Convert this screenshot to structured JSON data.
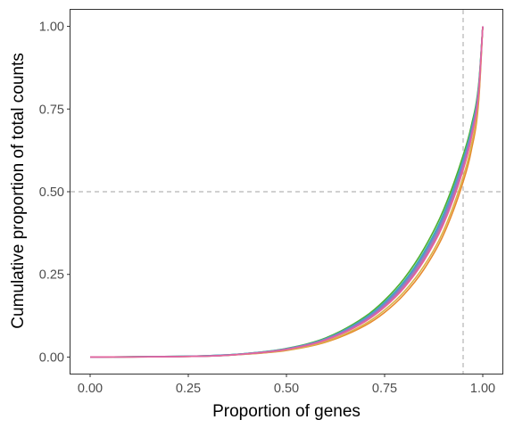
{
  "chart_data": {
    "type": "line",
    "title": "",
    "xlabel": "Proportion of genes",
    "ylabel": "Cumulative proportion of total counts",
    "xlim": [
      -0.05,
      1.05
    ],
    "ylim": [
      -0.05,
      1.05
    ],
    "x_ticks": [
      {
        "value": 0,
        "label": "0.00"
      },
      {
        "value": 0.25,
        "label": "0.25"
      },
      {
        "value": 0.5,
        "label": "0.50"
      },
      {
        "value": 0.75,
        "label": "0.75"
      },
      {
        "value": 1,
        "label": "1.00"
      }
    ],
    "y_ticks": [
      {
        "value": 0,
        "label": "0.00"
      },
      {
        "value": 0.25,
        "label": "0.25"
      },
      {
        "value": 0.5,
        "label": "0.50"
      },
      {
        "value": 0.75,
        "label": "0.75"
      },
      {
        "value": 1,
        "label": "1.00"
      }
    ],
    "grid": false,
    "legend": "none",
    "reference_lines": [
      {
        "orientation": "vertical",
        "value": 0.95,
        "style": "dashed",
        "color": "#b3b3b3"
      },
      {
        "orientation": "horizontal",
        "value": 0.5,
        "style": "dashed",
        "color": "#b3b3b3"
      }
    ],
    "x": [
      0,
      0.3,
      0.4,
      0.5,
      0.6,
      0.7,
      0.75,
      0.8,
      0.85,
      0.9,
      0.95,
      0.97,
      0.99,
      1.0
    ],
    "series": [
      {
        "color": "#e78a2e",
        "values": [
          0,
          0.003,
          0.009,
          0.02,
          0.045,
          0.095,
          0.135,
          0.19,
          0.265,
          0.37,
          0.53,
          0.62,
          0.78,
          1.0
        ]
      },
      {
        "color": "#d9b24a",
        "values": [
          0,
          0.003,
          0.009,
          0.021,
          0.047,
          0.1,
          0.142,
          0.198,
          0.275,
          0.382,
          0.545,
          0.635,
          0.79,
          1.0
        ]
      },
      {
        "color": "#a6c937",
        "values": [
          0,
          0.003,
          0.01,
          0.023,
          0.052,
          0.11,
          0.155,
          0.215,
          0.297,
          0.41,
          0.575,
          0.665,
          0.81,
          1.0
        ]
      },
      {
        "color": "#4fae30",
        "values": [
          0,
          0.004,
          0.011,
          0.026,
          0.058,
          0.122,
          0.172,
          0.238,
          0.327,
          0.445,
          0.61,
          0.695,
          0.83,
          1.0
        ]
      },
      {
        "color": "#3cb8a8",
        "values": [
          0,
          0.004,
          0.011,
          0.025,
          0.056,
          0.118,
          0.166,
          0.23,
          0.317,
          0.433,
          0.598,
          0.685,
          0.823,
          1.0
        ]
      },
      {
        "color": "#4d97cf",
        "values": [
          0,
          0.004,
          0.011,
          0.025,
          0.055,
          0.116,
          0.163,
          0.226,
          0.312,
          0.427,
          0.592,
          0.68,
          0.82,
          1.0
        ]
      },
      {
        "color": "#8f7cc4",
        "values": [
          0,
          0.003,
          0.01,
          0.024,
          0.054,
          0.113,
          0.159,
          0.221,
          0.305,
          0.419,
          0.585,
          0.673,
          0.815,
          1.0
        ]
      },
      {
        "color": "#c066b8",
        "values": [
          0,
          0.003,
          0.01,
          0.023,
          0.052,
          0.109,
          0.154,
          0.214,
          0.296,
          0.408,
          0.573,
          0.663,
          0.808,
          1.0
        ]
      },
      {
        "color": "#e5649c",
        "values": [
          0,
          0.003,
          0.01,
          0.023,
          0.051,
          0.107,
          0.151,
          0.21,
          0.291,
          0.402,
          0.566,
          0.657,
          0.804,
          1.0
        ]
      }
    ]
  }
}
